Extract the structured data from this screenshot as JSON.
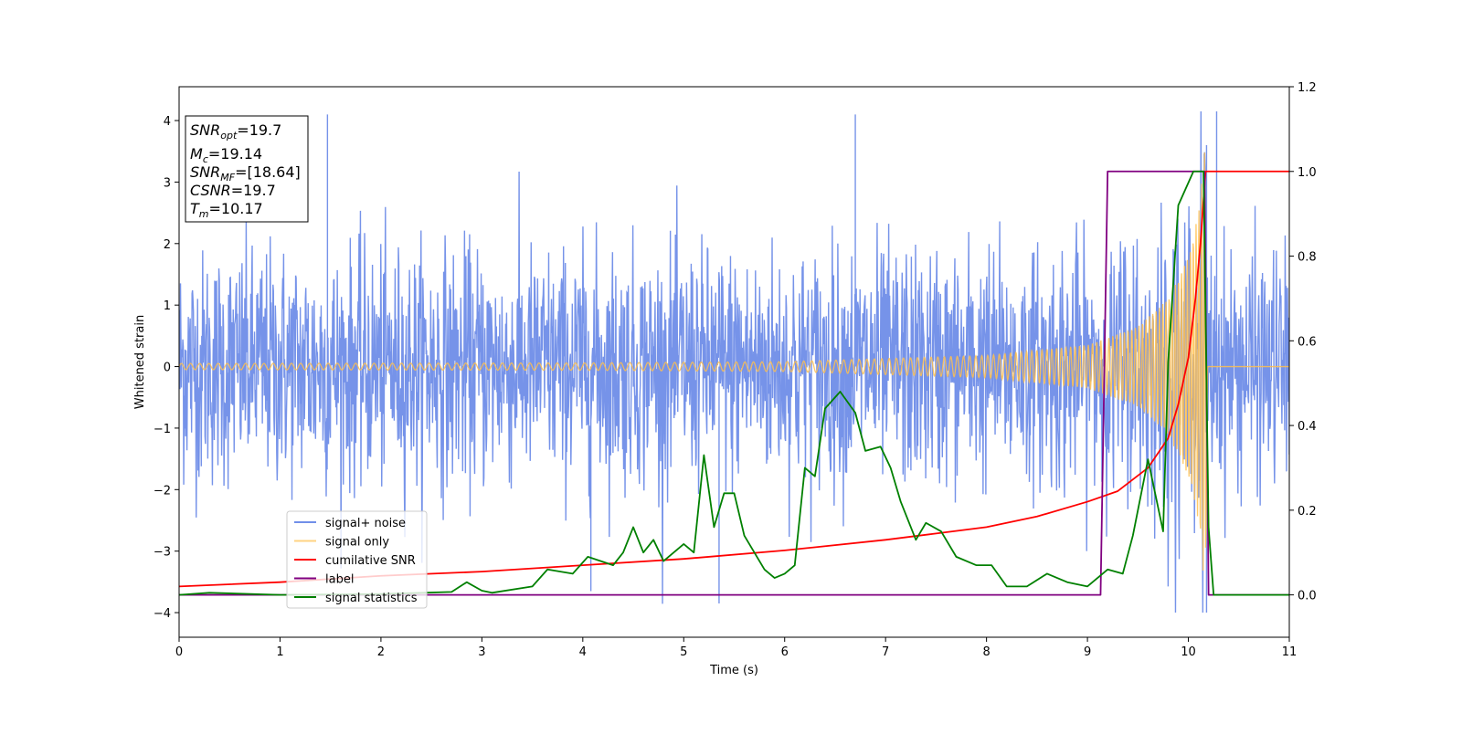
{
  "chart_data": {
    "type": "line",
    "xlabel": "Time (s)",
    "ylabel": "Whitened strain",
    "xlim": [
      0,
      11
    ],
    "ylim_left": [
      -4.4,
      4.55
    ],
    "ylim_right": [
      -0.1,
      1.2
    ],
    "x_ticks": [
      "0",
      "1",
      "2",
      "3",
      "4",
      "5",
      "6",
      "7",
      "8",
      "9",
      "10",
      "11"
    ],
    "y_ticks_left": [
      "4",
      "3",
      "2",
      "1",
      "0",
      "−1",
      "−2",
      "−3",
      "−4"
    ],
    "y_ticks_right": [
      "1.2",
      "1.0",
      "0.8",
      "0.6",
      "0.4",
      "0.2",
      "0.0"
    ],
    "legend_position": "lower-left",
    "info_box": {
      "position": "top-left",
      "lines": [
        {
          "base": "SNR",
          "sub": "opt",
          "rest": "=19.7"
        },
        {
          "base": "M",
          "sub": "c",
          "rest": "=19.14"
        },
        {
          "base": "SNR",
          "sub": "MF",
          "rest": "=[18.64]"
        },
        {
          "base": "CSNR",
          "sub": "",
          "rest": "=19.7"
        },
        {
          "base": "T",
          "sub": "m",
          "rest": "=10.17"
        }
      ]
    },
    "series": [
      {
        "name": "signal+ noise",
        "color": "#4169e1",
        "axis": "left",
        "description_level": "noisy strain, spread ~ ±1.4 with peaks to ±4",
        "noise_band_upper": [
          [
            0,
            1.5
          ],
          [
            2,
            1.5
          ],
          [
            4,
            1.5
          ],
          [
            6,
            1.5
          ],
          [
            8,
            1.5
          ],
          [
            9,
            1.5
          ],
          [
            10.2,
            1.5
          ],
          [
            11,
            1.5
          ]
        ],
        "notable_peaks": [
          [
            1.47,
            4.1
          ],
          [
            6.7,
            4.1
          ],
          [
            10.18,
            3.6
          ],
          [
            10.28,
            4.15
          ],
          [
            5.35,
            -3.85
          ],
          [
            10.18,
            -4.0
          ],
          [
            4.08,
            -3.65
          ]
        ]
      },
      {
        "name": "signal only",
        "color": "#ffc04d",
        "axis": "left",
        "envelope": [
          [
            0,
            0.05
          ],
          [
            4,
            0.06
          ],
          [
            6,
            0.08
          ],
          [
            8,
            0.18
          ],
          [
            9,
            0.35
          ],
          [
            9.5,
            0.65
          ],
          [
            9.8,
            1.1
          ],
          [
            10.0,
            1.8
          ],
          [
            10.1,
            2.5
          ],
          [
            10.17,
            3.75
          ],
          [
            10.19,
            0.0
          ],
          [
            11,
            0.0
          ]
        ]
      },
      {
        "name": "cumilative SNR",
        "color": "#ff0000",
        "axis": "right",
        "points": [
          [
            0,
            0.02
          ],
          [
            1,
            0.03
          ],
          [
            2,
            0.045
          ],
          [
            3,
            0.055
          ],
          [
            4,
            0.07
          ],
          [
            5,
            0.085
          ],
          [
            6,
            0.105
          ],
          [
            7,
            0.13
          ],
          [
            7.5,
            0.145
          ],
          [
            8,
            0.16
          ],
          [
            8.5,
            0.185
          ],
          [
            9,
            0.22
          ],
          [
            9.3,
            0.245
          ],
          [
            9.6,
            0.3
          ],
          [
            9.8,
            0.37
          ],
          [
            9.9,
            0.45
          ],
          [
            10.0,
            0.56
          ],
          [
            10.07,
            0.7
          ],
          [
            10.12,
            0.83
          ],
          [
            10.17,
            1.0
          ],
          [
            11,
            1.0
          ]
        ]
      },
      {
        "name": "label",
        "color": "#800080",
        "axis": "right",
        "points": [
          [
            0,
            0.0
          ],
          [
            9.13,
            0.0
          ],
          [
            9.2,
            1.0
          ],
          [
            10.16,
            1.0
          ],
          [
            10.2,
            0.0
          ],
          [
            11,
            0.0
          ]
        ]
      },
      {
        "name": "signal statistics",
        "color": "#008000",
        "axis": "right",
        "points": [
          [
            0,
            0.0
          ],
          [
            0.3,
            0.005
          ],
          [
            1.0,
            0.0
          ],
          [
            2.0,
            0.002
          ],
          [
            2.7,
            0.007
          ],
          [
            2.85,
            0.03
          ],
          [
            3.0,
            0.01
          ],
          [
            3.1,
            0.005
          ],
          [
            3.5,
            0.02
          ],
          [
            3.65,
            0.06
          ],
          [
            3.9,
            0.05
          ],
          [
            4.05,
            0.09
          ],
          [
            4.3,
            0.07
          ],
          [
            4.4,
            0.1
          ],
          [
            4.5,
            0.16
          ],
          [
            4.6,
            0.1
          ],
          [
            4.7,
            0.13
          ],
          [
            4.8,
            0.08
          ],
          [
            5.0,
            0.12
          ],
          [
            5.1,
            0.1
          ],
          [
            5.2,
            0.33
          ],
          [
            5.3,
            0.16
          ],
          [
            5.4,
            0.24
          ],
          [
            5.5,
            0.24
          ],
          [
            5.6,
            0.14
          ],
          [
            5.8,
            0.06
          ],
          [
            5.9,
            0.04
          ],
          [
            6.0,
            0.05
          ],
          [
            6.1,
            0.07
          ],
          [
            6.2,
            0.3
          ],
          [
            6.3,
            0.28
          ],
          [
            6.4,
            0.44
          ],
          [
            6.55,
            0.48
          ],
          [
            6.7,
            0.43
          ],
          [
            6.8,
            0.34
          ],
          [
            6.95,
            0.35
          ],
          [
            7.05,
            0.3
          ],
          [
            7.15,
            0.22
          ],
          [
            7.3,
            0.13
          ],
          [
            7.4,
            0.17
          ],
          [
            7.55,
            0.15
          ],
          [
            7.7,
            0.09
          ],
          [
            7.9,
            0.07
          ],
          [
            8.05,
            0.07
          ],
          [
            8.2,
            0.02
          ],
          [
            8.4,
            0.02
          ],
          [
            8.6,
            0.05
          ],
          [
            8.8,
            0.03
          ],
          [
            9.0,
            0.02
          ],
          [
            9.2,
            0.06
          ],
          [
            9.35,
            0.05
          ],
          [
            9.45,
            0.14
          ],
          [
            9.6,
            0.32
          ],
          [
            9.75,
            0.15
          ],
          [
            9.8,
            0.55
          ],
          [
            9.9,
            0.92
          ],
          [
            10.05,
            1.0
          ],
          [
            10.15,
            1.0
          ],
          [
            10.2,
            0.16
          ],
          [
            10.25,
            0.0
          ],
          [
            11,
            0.0
          ]
        ]
      }
    ]
  }
}
